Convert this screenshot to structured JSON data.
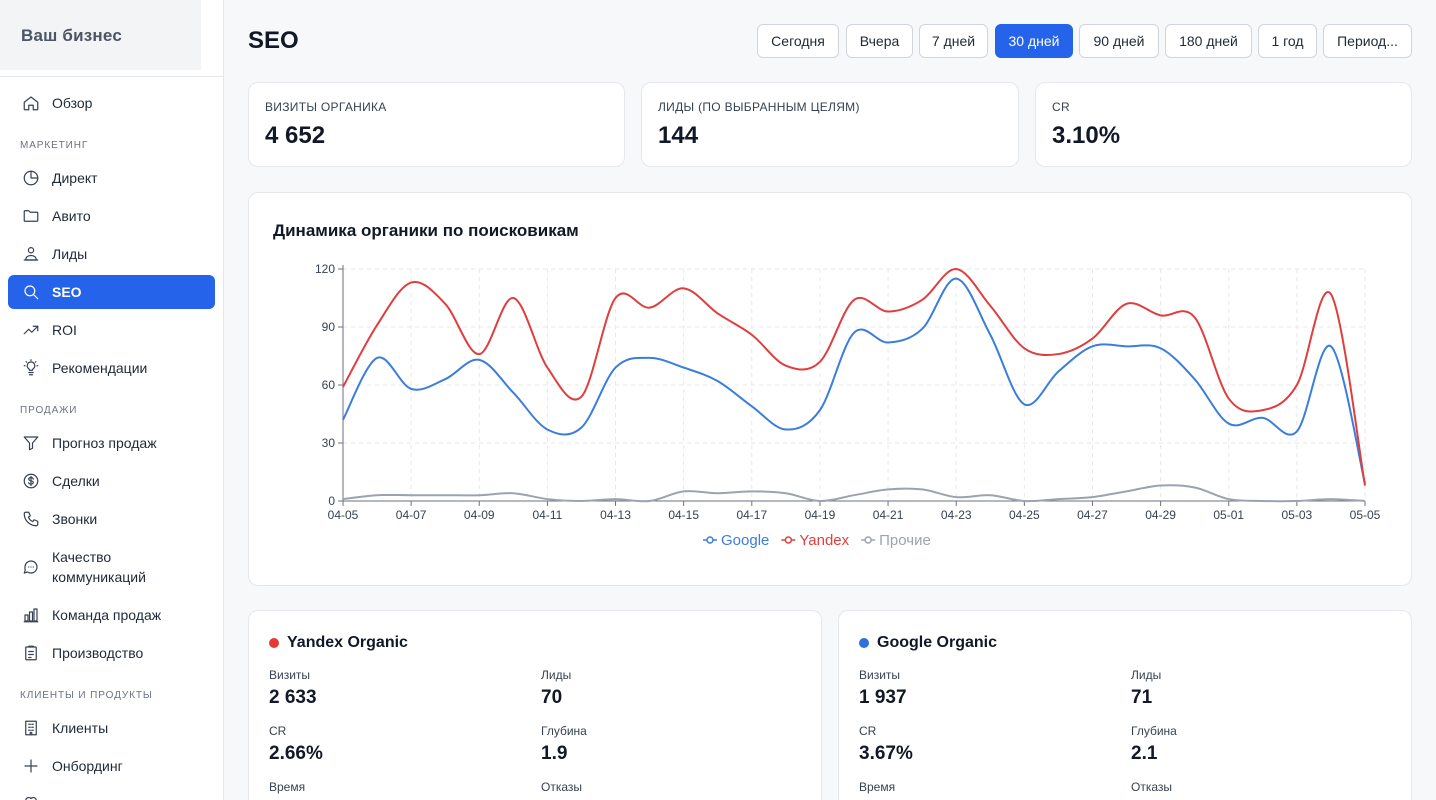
{
  "sidebar": {
    "brand": "Ваш бизнес",
    "sections": {
      "marketing": "МАРКЕТИНГ",
      "sales": "ПРОДАЖИ",
      "clients": "КЛИЕНТЫ И ПРОДУКТЫ"
    },
    "items": {
      "overview": "Обзор",
      "direct": "Директ",
      "avito": "Авито",
      "leads": "Лиды",
      "seo": "SEO",
      "roi": "ROI",
      "recommendations": "Рекомендации",
      "forecast": "Прогноз продаж",
      "deals": "Сделки",
      "calls": "Звонки",
      "comm_quality": "Качество коммуникаций",
      "sales_team": "Команда продаж",
      "production": "Производство",
      "clients": "Клиенты",
      "onboarding": "Онбординг"
    },
    "active": "seo"
  },
  "header": {
    "title": "SEO",
    "periods": [
      "Сегодня",
      "Вчера",
      "7 дней",
      "30 дней",
      "90 дней",
      "180 дней",
      "1 год",
      "Период..."
    ],
    "active_period": "30 дней"
  },
  "kpis": [
    {
      "label": "ВИЗИТЫ ОРГАНИКА",
      "value": "4 652"
    },
    {
      "label": "ЛИДЫ (ПО ВЫБРАННЫМ ЦЕЛЯМ)",
      "value": "144"
    },
    {
      "label": "CR",
      "value": "3.10%"
    }
  ],
  "chart_card": {
    "title": "Динамика органики по поисковикам"
  },
  "chart_data": {
    "type": "line",
    "title": "Динамика органики по поисковикам",
    "x": [
      "04-05",
      "04-06",
      "04-07",
      "04-08",
      "04-09",
      "04-10",
      "04-11",
      "04-12",
      "04-13",
      "04-14",
      "04-15",
      "04-16",
      "04-17",
      "04-18",
      "04-19",
      "04-20",
      "04-21",
      "04-22",
      "04-23",
      "04-24",
      "04-25",
      "04-26",
      "04-27",
      "04-28",
      "04-29",
      "04-30",
      "05-01",
      "05-02",
      "05-03",
      "05-04",
      "05-05"
    ],
    "x_tick_labels": [
      "04-05",
      "04-07",
      "04-09",
      "04-11",
      "04-13",
      "04-15",
      "04-17",
      "04-19",
      "04-21",
      "04-23",
      "04-25",
      "04-27",
      "04-29",
      "05-01",
      "05-03",
      "05-05"
    ],
    "ylim": [
      0,
      120
    ],
    "y_ticks": [
      0,
      30,
      60,
      90,
      120
    ],
    "grid": true,
    "legend": "bottom-center",
    "series": [
      {
        "name": "Google",
        "color": "#3b7ddd",
        "values": [
          42,
          74,
          58,
          63,
          73,
          56,
          37,
          38,
          69,
          74,
          69,
          62,
          49,
          37,
          47,
          87,
          82,
          89,
          115,
          86,
          50,
          67,
          80,
          80,
          79,
          63,
          40,
          43,
          36,
          80,
          9
        ]
      },
      {
        "name": "Yandex",
        "color": "#e03e3e",
        "values": [
          59,
          91,
          113,
          102,
          76,
          105,
          69,
          54,
          105,
          100,
          110,
          97,
          86,
          70,
          72,
          104,
          98,
          104,
          120,
          101,
          79,
          76,
          84,
          102,
          96,
          95,
          53,
          47,
          60,
          107,
          8
        ]
      },
      {
        "name": "Прочие",
        "color": "#9ca3af",
        "values": [
          1,
          3,
          3,
          3,
          3,
          4,
          1,
          0,
          1,
          0,
          5,
          4,
          5,
          4,
          0,
          3,
          6,
          6,
          2,
          3,
          0,
          1,
          2,
          5,
          8,
          7,
          1,
          0,
          0,
          1,
          0
        ]
      }
    ]
  },
  "sources": [
    {
      "name": "Yandex Organic",
      "color": "#e53935",
      "metrics": [
        {
          "label": "Визиты",
          "value": "2 633"
        },
        {
          "label": "Лиды",
          "value": "70"
        },
        {
          "label": "CR",
          "value": "2.66%"
        },
        {
          "label": "Глубина",
          "value": "1.9"
        },
        {
          "label": "Время",
          "value": ""
        },
        {
          "label": "Отказы",
          "value": ""
        }
      ]
    },
    {
      "name": "Google Organic",
      "color": "#2f6fe0",
      "metrics": [
        {
          "label": "Визиты",
          "value": "1 937"
        },
        {
          "label": "Лиды",
          "value": "71"
        },
        {
          "label": "CR",
          "value": "3.67%"
        },
        {
          "label": "Глубина",
          "value": "2.1"
        },
        {
          "label": "Время",
          "value": ""
        },
        {
          "label": "Отказы",
          "value": ""
        }
      ]
    }
  ]
}
